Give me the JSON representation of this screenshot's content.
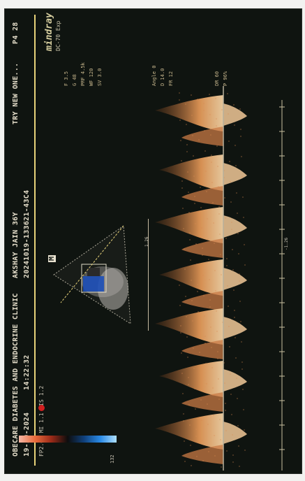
{
  "header": {
    "clinic": "OBECARE DIABETES AND ENDOCRINE CLINIC",
    "patient": "AKSHAY JAIN 36Y",
    "date": "19-10-2024",
    "time": "14:22:32",
    "exam_id": "20241019-133621-43C4",
    "mode_line": "FP2.6%  MI 1.1  TIS 1.2",
    "comment": "TRY NEW ONE...",
    "page": "P4 28"
  },
  "brand": {
    "name": "mindray",
    "model": "DC-70 Exp"
  },
  "labels": {
    "probe_badge": "M",
    "scale_top": "1.26",
    "scale_bottom": "-1.26",
    "colorbar_value": "132"
  },
  "params": [
    "F 3.5",
    "G 48",
    "PRF 4.5k",
    "WF 120",
    "SV 3.0",
    "Angle 0",
    "D 14.0",
    "FR 12",
    "DR 60",
    "P 96%"
  ],
  "colors": {
    "background": "#0f1410",
    "accent": "#e8d37a",
    "doppler": "#e4a46a",
    "marker": "#d11f1f"
  }
}
